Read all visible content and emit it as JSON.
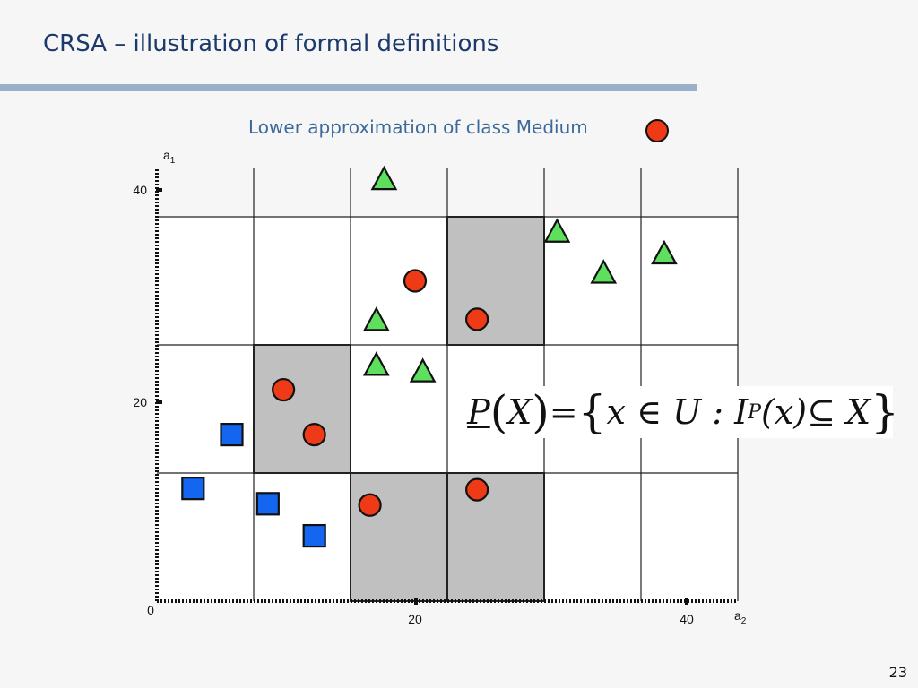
{
  "slide": {
    "title": "CRSA – illustration of formal definitions",
    "subtitle": "Lower approximation of class Medium",
    "page_number": "23"
  },
  "formula": {
    "lhs": "P",
    "open_paren": "(",
    "arg": "X",
    "close_paren": ")",
    "eq": " = ",
    "lbrace": "{",
    "set_body": "x ∈ U : I",
    "sub": "P",
    "paren_x": "(x)",
    "subset": " ⊆ X",
    "rbrace": "}"
  },
  "colors": {
    "title": "#1b3a6b",
    "subtitle": "#3b6a9a",
    "title_bar": "#9ab0c9",
    "medium_circle": "#ee3a16",
    "high_triangle": "#5ee05e",
    "low_square": "#1466f0",
    "lower_approx_cell": "#c0c0c0"
  },
  "chart_data": {
    "type": "scatter",
    "title": "Lower approximation of class Medium",
    "xlabel_main": "a",
    "xlabel_sub": "2",
    "ylabel_main": "a",
    "ylabel_sub": "1",
    "xlim": [
      0,
      40
    ],
    "ylim": [
      0,
      40
    ],
    "x_ticks": [
      {
        "value": 0,
        "label": "0"
      },
      {
        "value": 20,
        "label": "20"
      },
      {
        "value": 40,
        "label": "40"
      }
    ],
    "y_ticks": [
      {
        "value": 20,
        "label": "20"
      },
      {
        "value": 40,
        "label": "40"
      }
    ],
    "x_grid": [
      7.5,
      15,
      22.5,
      30,
      37.5,
      45
    ],
    "y_grid": [
      10,
      20,
      30
    ],
    "lower_approximation_cells": [
      {
        "x": [
          7.5,
          15
        ],
        "y": [
          10,
          20
        ]
      },
      {
        "x": [
          22.5,
          30
        ],
        "y": [
          20,
          30
        ]
      },
      {
        "x": [
          15,
          22.5
        ],
        "y": [
          0,
          10
        ]
      },
      {
        "x": [
          22.5,
          30
        ],
        "y": [
          0,
          10
        ]
      }
    ],
    "series": [
      {
        "shape": "circle",
        "points": [
          [
            20,
            25
          ],
          [
            24.8,
            22
          ],
          [
            9.8,
            16.5
          ],
          [
            12.2,
            13
          ],
          [
            16.5,
            7.5
          ],
          [
            24.8,
            8.7
          ]
        ]
      },
      {
        "shape": "triangle",
        "points": [
          [
            17.6,
            33
          ],
          [
            31,
            28.9
          ],
          [
            34.6,
            25.7
          ],
          [
            39.3,
            27.2
          ],
          [
            17,
            22
          ],
          [
            17,
            18.5
          ],
          [
            20.6,
            18
          ]
        ]
      },
      {
        "shape": "square",
        "points": [
          [
            5.8,
            13
          ],
          [
            2.8,
            8.8
          ],
          [
            8.6,
            7.6
          ],
          [
            12.2,
            5.1
          ]
        ]
      }
    ]
  }
}
